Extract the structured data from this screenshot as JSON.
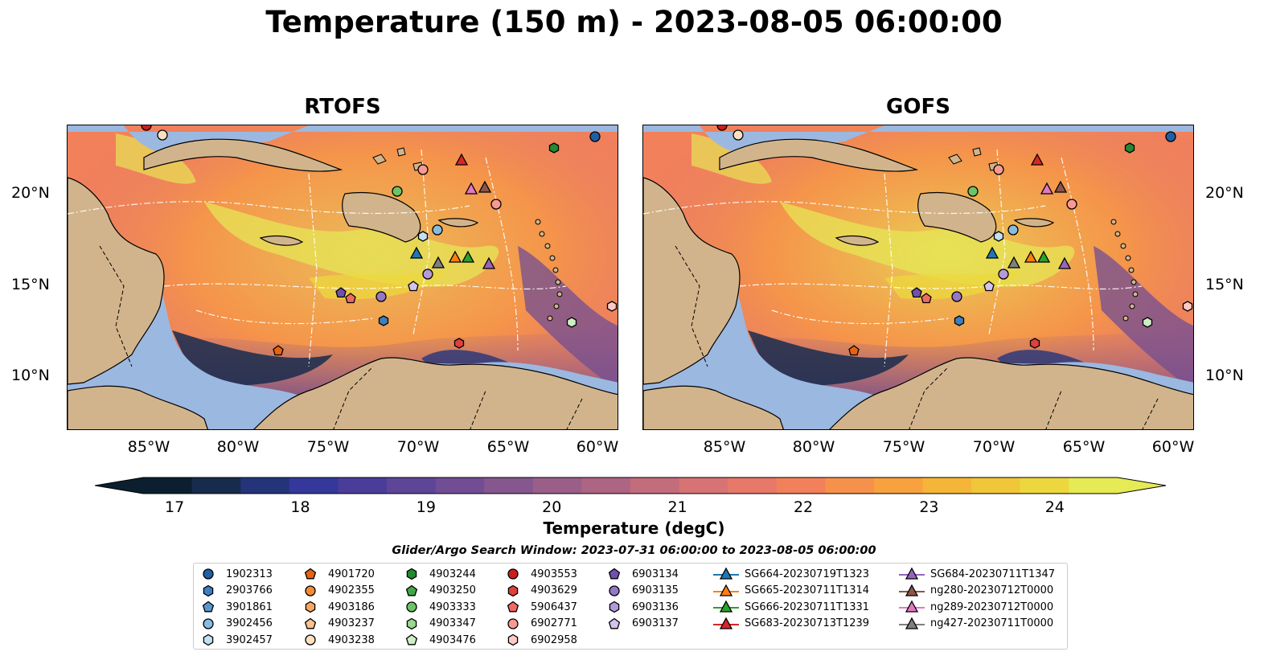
{
  "title": "Temperature (150 m) - 2023-08-05 06:00:00",
  "panels": [
    {
      "title": "RTOFS"
    },
    {
      "title": "GOFS"
    }
  ],
  "axes": {
    "x_ticks": [
      "85°W",
      "80°W",
      "75°W",
      "70°W",
      "65°W",
      "60°W"
    ],
    "y_ticks": [
      "20°N",
      "15°N",
      "10°N"
    ]
  },
  "colorbar": {
    "label": "Temperature (degC)",
    "ticks": [
      "17",
      "18",
      "19",
      "20",
      "21",
      "22",
      "23",
      "24"
    ],
    "min": 17,
    "max": 24.5,
    "colors": [
      "#0b1f2e",
      "#172b4d",
      "#24347a",
      "#34389a",
      "#4a3d9a",
      "#5d4697",
      "#714e93",
      "#85578e",
      "#9a5f89",
      "#ad6583",
      "#c36c7c",
      "#d77374",
      "#e7786a",
      "#f2815b",
      "#f6914c",
      "#f7a13f",
      "#f5b538",
      "#f0c73a",
      "#ecd83e",
      "#e6ea55"
    ]
  },
  "search_window": "Glider/Argo Search Window: 2023-07-31 06:00:00 to 2023-08-05 06:00:00",
  "legend": {
    "items": [
      {
        "label": "1902313",
        "marker": "circle",
        "color": "#1f5fa6"
      },
      {
        "label": "2903766",
        "marker": "hexagon",
        "color": "#3d7fbf"
      },
      {
        "label": "3901861",
        "marker": "pentagon",
        "color": "#5a97cd"
      },
      {
        "label": "3902456",
        "marker": "circle",
        "color": "#86bce0"
      },
      {
        "label": "3902457",
        "marker": "hexagon",
        "color": "#c4dff0"
      },
      {
        "label": "4901720",
        "marker": "pentagon",
        "color": "#e8630e"
      },
      {
        "label": "4902355",
        "marker": "circle",
        "color": "#f58c35"
      },
      {
        "label": "4903186",
        "marker": "hexagon",
        "color": "#f9a660"
      },
      {
        "label": "4903237",
        "marker": "pentagon",
        "color": "#fcc18e"
      },
      {
        "label": "4903238",
        "marker": "circle",
        "color": "#fde0c2"
      },
      {
        "label": "4903244",
        "marker": "hexagon",
        "color": "#238b2f"
      },
      {
        "label": "4903250",
        "marker": "pentagon",
        "color": "#41a846"
      },
      {
        "label": "4903333",
        "marker": "circle",
        "color": "#6cc465"
      },
      {
        "label": "4903347",
        "marker": "hexagon",
        "color": "#9ad88d"
      },
      {
        "label": "4903476",
        "marker": "pentagon",
        "color": "#cdeec4"
      },
      {
        "label": "4903553",
        "marker": "circle",
        "color": "#cc1e1e"
      },
      {
        "label": "4903629",
        "marker": "hexagon",
        "color": "#e0403c"
      },
      {
        "label": "5906437",
        "marker": "pentagon",
        "color": "#ef6a64"
      },
      {
        "label": "6902771",
        "marker": "circle",
        "color": "#f79a93"
      },
      {
        "label": "6902958",
        "marker": "hexagon",
        "color": "#fcc9c4"
      },
      {
        "label": "6903134",
        "marker": "pentagon",
        "color": "#7050b0"
      },
      {
        "label": "6903135",
        "marker": "circle",
        "color": "#9676c6"
      },
      {
        "label": "6903136",
        "marker": "hexagon",
        "color": "#b49ad8"
      },
      {
        "label": "6903137",
        "marker": "pentagon",
        "color": "#d4c2ec"
      },
      {
        "label": "SG664-20230719T1323",
        "marker": "triangle-line",
        "color": "#1f77b4"
      },
      {
        "label": "SG665-20230711T1314",
        "marker": "triangle-line",
        "color": "#ff7f0e"
      },
      {
        "label": "SG666-20230711T1331",
        "marker": "triangle-line",
        "color": "#2ca02c"
      },
      {
        "label": "SG683-20230713T1239",
        "marker": "triangle-line",
        "color": "#d62728"
      },
      {
        "label": "SG684-20230711T1347",
        "marker": "triangle-line",
        "color": "#9467bd"
      },
      {
        "label": "ng280-20230712T0000",
        "marker": "triangle-line",
        "color": "#8c564b"
      },
      {
        "label": "ng289-20230712T0000",
        "marker": "triangle-line",
        "color": "#e377c2"
      },
      {
        "label": "ng427-20230711T0000",
        "marker": "triangle-line",
        "color": "#7f7f7f"
      }
    ]
  },
  "map_colors": {
    "land": "#d2b48c",
    "shelf": "#9bb8e0",
    "deep_cold": "#0b1f2e"
  }
}
